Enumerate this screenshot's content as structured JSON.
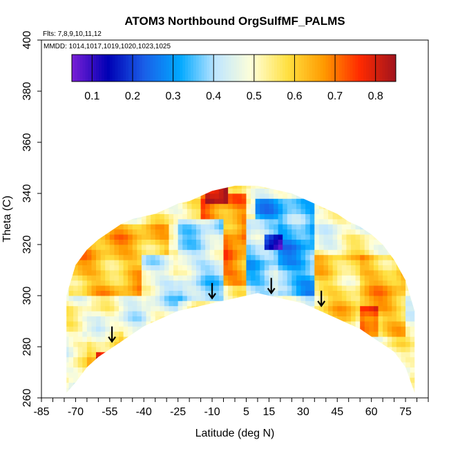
{
  "chart_data": {
    "type": "heatmap",
    "title": "ATOM3 Northbound OrgSulfMF_PALMS",
    "subtitle_flights": "Flts: 7,8,9,10,11,12",
    "subtitle_dates": "MMDD: 1014,1017,1019,1020,1023,1025",
    "xlabel": "Latitude (deg N)",
    "ylabel": "Theta (C)",
    "xlim": [
      -85,
      85
    ],
    "ylim": [
      260,
      400
    ],
    "x_ticks": [
      -85,
      -70,
      -55,
      -40,
      -25,
      -10,
      5,
      15,
      30,
      45,
      60,
      75
    ],
    "y_ticks": [
      260,
      280,
      300,
      320,
      340,
      360,
      380,
      400
    ],
    "colorbar": {
      "range": [
        0.05,
        0.85
      ],
      "tick_values": [
        0.1,
        0.2,
        0.3,
        0.4,
        0.5,
        0.6,
        0.7,
        0.8
      ],
      "tick_labels": [
        "0.1",
        "0.2",
        "0.3",
        "0.4",
        "0.5",
        "0.6",
        "0.7",
        "0.8"
      ],
      "colors": [
        "#7a1fd6",
        "#0000b4",
        "#1a5ee8",
        "#00a8ff",
        "#bfe6ff",
        "#ffffd8",
        "#ffe040",
        "#ff9a00",
        "#ff2a00",
        "#a0141e"
      ]
    },
    "arrows": [
      {
        "lat": -54,
        "theta": 282
      },
      {
        "lat": -10,
        "theta": 299
      },
      {
        "lat": 16,
        "theta": 301
      },
      {
        "lat": 38,
        "theta": 296
      }
    ],
    "coverage_boundary": {
      "lat": [
        -74,
        -70,
        -65,
        -60,
        -55,
        -50,
        -45,
        -40,
        -35,
        -30,
        -25,
        -20,
        -15,
        -10,
        -5,
        0,
        5,
        10,
        15,
        20,
        25,
        30,
        35,
        40,
        45,
        50,
        55,
        60,
        65,
        70,
        75,
        79
      ],
      "theta_bottom": [
        262,
        266,
        272,
        276,
        279,
        282,
        285,
        288,
        290,
        292,
        294,
        295,
        296,
        297,
        298,
        299,
        300,
        301,
        300,
        299,
        298,
        297,
        295,
        293,
        291,
        289,
        287,
        284,
        281,
        278,
        272,
        262
      ],
      "theta_top": [
        300,
        312,
        318,
        322,
        325,
        328,
        330,
        331,
        332,
        334,
        336,
        337,
        339,
        341,
        342,
        343,
        343,
        343,
        342,
        341,
        340,
        338,
        336,
        334,
        332,
        329,
        327,
        324,
        320,
        314,
        306,
        294
      ]
    },
    "regions": [
      {
        "lat": [
          -72,
          -30
        ],
        "theta": [
          300,
          328
        ],
        "value": 0.62
      },
      {
        "lat": [
          -60,
          -40
        ],
        "theta": [
          285,
          300
        ],
        "value": 0.48
      },
      {
        "lat": [
          -65,
          -50
        ],
        "theta": [
          270,
          285
        ],
        "value": 0.55
      },
      {
        "lat": [
          -40,
          -25
        ],
        "theta": [
          295,
          315
        ],
        "value": 0.45
      },
      {
        "lat": [
          -25,
          -5
        ],
        "theta": [
          298,
          330
        ],
        "value": 0.42
      },
      {
        "lat": [
          -15,
          5
        ],
        "theta": [
          305,
          340
        ],
        "value": 0.68
      },
      {
        "lat": [
          5,
          18
        ],
        "theta": [
          300,
          330
        ],
        "value": 0.38
      },
      {
        "lat": [
          10,
          35
        ],
        "theta": [
          300,
          338
        ],
        "value": 0.33
      },
      {
        "lat": [
          14,
          20
        ],
        "theta": [
          318,
          324
        ],
        "value": 0.15
      },
      {
        "lat": [
          35,
          55
        ],
        "theta": [
          290,
          315
        ],
        "value": 0.58
      },
      {
        "lat": [
          55,
          75
        ],
        "theta": [
          285,
          315
        ],
        "value": 0.62
      },
      {
        "lat": [
          55,
          62
        ],
        "theta": [
          285,
          295
        ],
        "value": 0.76
      },
      {
        "lat": [
          -60,
          -52
        ],
        "theta": [
          272,
          278
        ],
        "value": 0.78
      },
      {
        "lat": [
          -12,
          -4
        ],
        "theta": [
          336,
          343
        ],
        "value": 0.82
      }
    ]
  }
}
